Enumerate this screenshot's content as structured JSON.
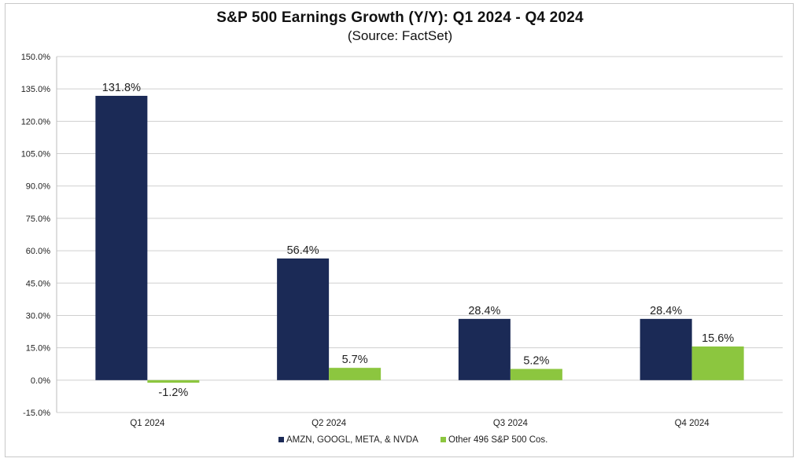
{
  "chart_data": {
    "type": "bar",
    "title": "S&P 500 Earnings Growth (Y/Y): Q1 2024 - Q4 2024",
    "subtitle": "(Source: FactSet)",
    "categories": [
      "Q1 2024",
      "Q2 2024",
      "Q3 2024",
      "Q4 2024"
    ],
    "series": [
      {
        "name": "AMZN, GOOGL, META, & NVDA",
        "values": [
          131.8,
          56.4,
          28.4,
          28.4
        ],
        "labels": [
          "131.8%",
          "56.4%",
          "28.4%",
          "28.4%"
        ],
        "color": "#1b2a56"
      },
      {
        "name": "Other 496 S&P 500 Cos.",
        "values": [
          -1.2,
          5.7,
          5.2,
          15.6
        ],
        "labels": [
          "-1.2%",
          "5.7%",
          "5.2%",
          "15.6%"
        ],
        "color": "#8cc63f"
      }
    ],
    "ylim": [
      -15,
      150
    ],
    "yticks": [
      -15,
      0,
      15,
      30,
      45,
      60,
      75,
      90,
      105,
      120,
      135,
      150
    ],
    "ytick_labels": [
      "-15.0%",
      "0.0%",
      "15.0%",
      "30.0%",
      "45.0%",
      "60.0%",
      "75.0%",
      "90.0%",
      "105.0%",
      "120.0%",
      "135.0%",
      "150.0%"
    ],
    "grid": true,
    "legend_position": "bottom"
  }
}
